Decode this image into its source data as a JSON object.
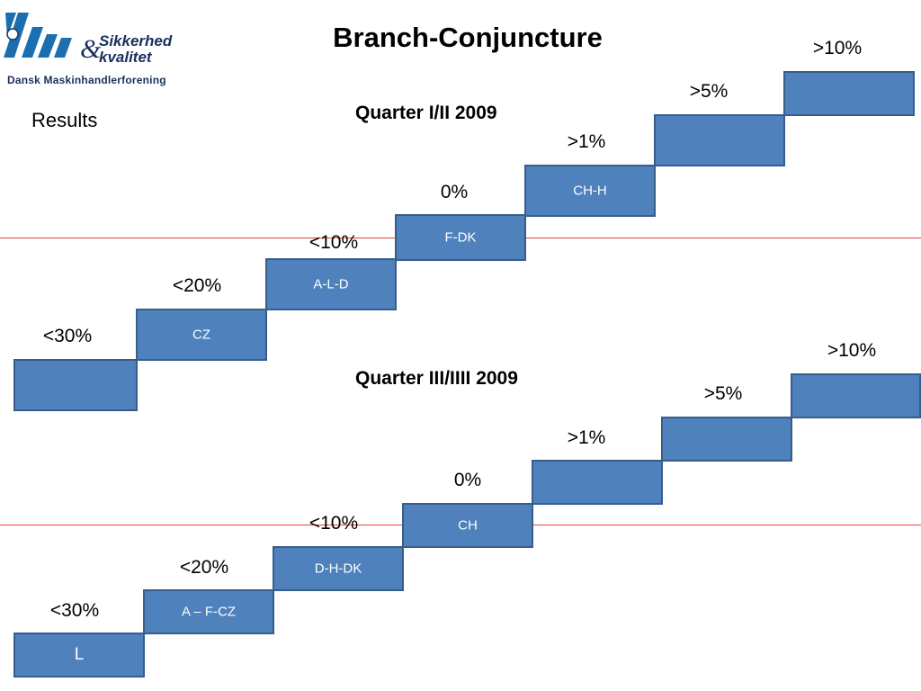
{
  "header": {
    "title": "Branch-Conjuncture",
    "results_label": "Results",
    "logo": {
      "line1": "Sikkerhed",
      "amp": "&",
      "line2": "kvalitet",
      "org": "Dansk Maskinhandlerforening"
    }
  },
  "colors": {
    "step_fill": "#4f81bd",
    "step_border": "#385d8a",
    "reference_line": "#e8453c",
    "logo_blue": "#1b2f5e"
  },
  "diagram_top": {
    "title": "Quarter I/II 2009",
    "steps": [
      {
        "level": "<30%",
        "label": ""
      },
      {
        "level": "<20%",
        "label": "CZ"
      },
      {
        "level": "<10%",
        "label": "A-L-D"
      },
      {
        "level": "0%",
        "label": "F-DK"
      },
      {
        "level": ">1%",
        "label": "CH-H"
      },
      {
        "level": ">5%",
        "label": ""
      },
      {
        "level": ">10%",
        "label": ""
      }
    ]
  },
  "diagram_bottom": {
    "title": "Quarter III/IIII 2009",
    "steps": [
      {
        "level": "<30%",
        "label": "L"
      },
      {
        "level": "<20%",
        "label": "A – F-CZ"
      },
      {
        "level": "<10%",
        "label": "D-H-DK"
      },
      {
        "level": "0%",
        "label": "CH"
      },
      {
        "level": ">1%",
        "label": ""
      },
      {
        "level": ">5%",
        "label": ""
      },
      {
        "level": ">10%",
        "label": ""
      }
    ]
  }
}
